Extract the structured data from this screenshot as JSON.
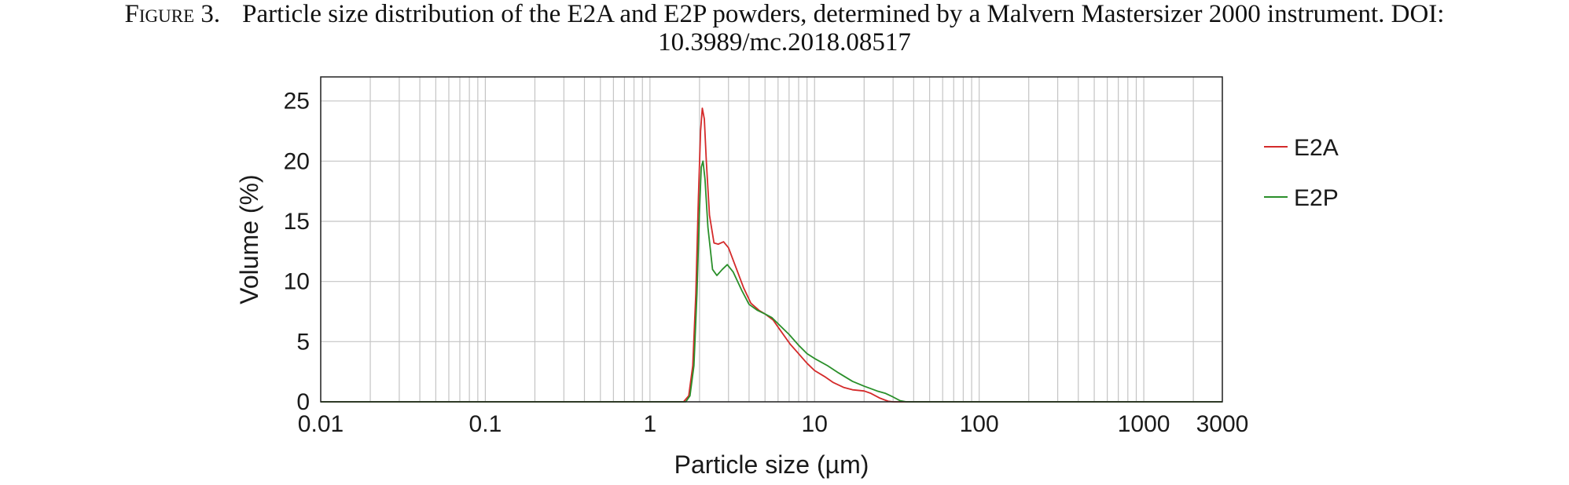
{
  "caption": {
    "label": "Figure 3.",
    "line1": "Particle size distribution of the E2A and E2P powders, determined by a Malvern Mastersizer 2000 instrument. DOI:",
    "line2": "10.3989/mc.2018.08517"
  },
  "colors": {
    "E2A": "#d42a2a",
    "E2P": "#2a8f2a",
    "grid": "#c4c4c4",
    "frame": "#222222"
  },
  "chart_data": {
    "type": "line",
    "xlabel": "Particle size (µm)",
    "ylabel": "Volume (%)",
    "x_scale": "log",
    "xlim": [
      0.01,
      3000
    ],
    "ylim": [
      0,
      27
    ],
    "x_ticks": [
      {
        "value": 0.01,
        "label": "0.01"
      },
      {
        "value": 0.1,
        "label": "0.1"
      },
      {
        "value": 1,
        "label": "1"
      },
      {
        "value": 10,
        "label": "10"
      },
      {
        "value": 100,
        "label": "100"
      },
      {
        "value": 1000,
        "label": "1000"
      },
      {
        "value": 3000,
        "label": "3000"
      }
    ],
    "y_ticks": [
      0,
      5,
      10,
      15,
      20,
      25
    ],
    "grid": true,
    "legend": "right",
    "series": [
      {
        "name": "E2A",
        "points": [
          [
            0.01,
            0
          ],
          [
            1.6,
            0
          ],
          [
            1.72,
            0.5
          ],
          [
            1.82,
            3
          ],
          [
            1.9,
            9
          ],
          [
            1.97,
            17
          ],
          [
            2.03,
            22.5
          ],
          [
            2.08,
            24.4
          ],
          [
            2.14,
            23.5
          ],
          [
            2.2,
            20
          ],
          [
            2.3,
            15.5
          ],
          [
            2.45,
            13.2
          ],
          [
            2.6,
            13.1
          ],
          [
            2.8,
            13.3
          ],
          [
            3.0,
            12.8
          ],
          [
            3.3,
            11.3
          ],
          [
            3.7,
            9.5
          ],
          [
            4.1,
            8.2
          ],
          [
            4.6,
            7.6
          ],
          [
            5.0,
            7.3
          ],
          [
            5.6,
            6.8
          ],
          [
            6.3,
            5.8
          ],
          [
            7.1,
            4.8
          ],
          [
            8.0,
            4.0
          ],
          [
            9.0,
            3.2
          ],
          [
            10,
            2.6
          ],
          [
            11.5,
            2.1
          ],
          [
            13,
            1.6
          ],
          [
            15,
            1.2
          ],
          [
            17,
            1.0
          ],
          [
            20,
            0.9
          ],
          [
            22,
            0.7
          ],
          [
            25,
            0.3
          ],
          [
            28,
            0.05
          ],
          [
            30,
            0
          ],
          [
            3000,
            0
          ]
        ]
      },
      {
        "name": "E2P",
        "points": [
          [
            0.01,
            0
          ],
          [
            1.65,
            0
          ],
          [
            1.75,
            0.5
          ],
          [
            1.85,
            3
          ],
          [
            1.93,
            9
          ],
          [
            2.0,
            16
          ],
          [
            2.05,
            19.5
          ],
          [
            2.1,
            20
          ],
          [
            2.16,
            18.5
          ],
          [
            2.25,
            14.5
          ],
          [
            2.4,
            11
          ],
          [
            2.55,
            10.5
          ],
          [
            2.75,
            11
          ],
          [
            2.95,
            11.4
          ],
          [
            3.2,
            10.8
          ],
          [
            3.6,
            9.3
          ],
          [
            4.0,
            8.1
          ],
          [
            4.5,
            7.6
          ],
          [
            5.0,
            7.3
          ],
          [
            5.5,
            7.0
          ],
          [
            6.2,
            6.3
          ],
          [
            7.0,
            5.6
          ],
          [
            8.0,
            4.7
          ],
          [
            9.0,
            4.0
          ],
          [
            10,
            3.6
          ],
          [
            12,
            3.0
          ],
          [
            14,
            2.4
          ],
          [
            17,
            1.7
          ],
          [
            20,
            1.3
          ],
          [
            24,
            0.9
          ],
          [
            27,
            0.7
          ],
          [
            30,
            0.4
          ],
          [
            33,
            0.1
          ],
          [
            36,
            0
          ],
          [
            3000,
            0
          ]
        ]
      }
    ]
  }
}
